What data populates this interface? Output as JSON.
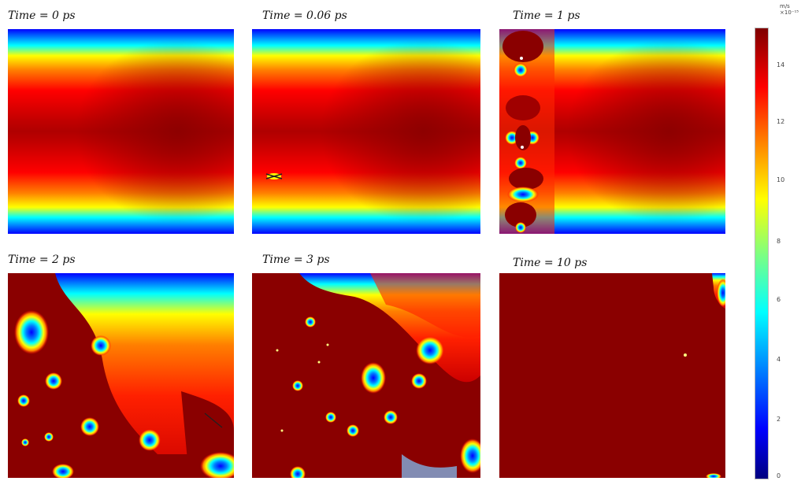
{
  "panels": [
    {
      "title": "Time = 0 ps"
    },
    {
      "title": "Time = 0.06 ps"
    },
    {
      "title": "Time = 1 ps"
    },
    {
      "title": "Time = 2 ps"
    },
    {
      "title": "Time = 3 ps"
    },
    {
      "title": "Time = 10 ps"
    }
  ],
  "colorbar": {
    "unit_line1": "m/s",
    "unit_line2": "×10⁻¹⁵",
    "ticks": [
      "14",
      "12",
      "10",
      "8",
      "6",
      "4",
      "2",
      "0"
    ],
    "colors": [
      "#00007f",
      "#0000ff",
      "#007fff",
      "#00ffff",
      "#7fff7f",
      "#ffff00",
      "#ff7f00",
      "#ff0000",
      "#7f0000"
    ]
  }
}
